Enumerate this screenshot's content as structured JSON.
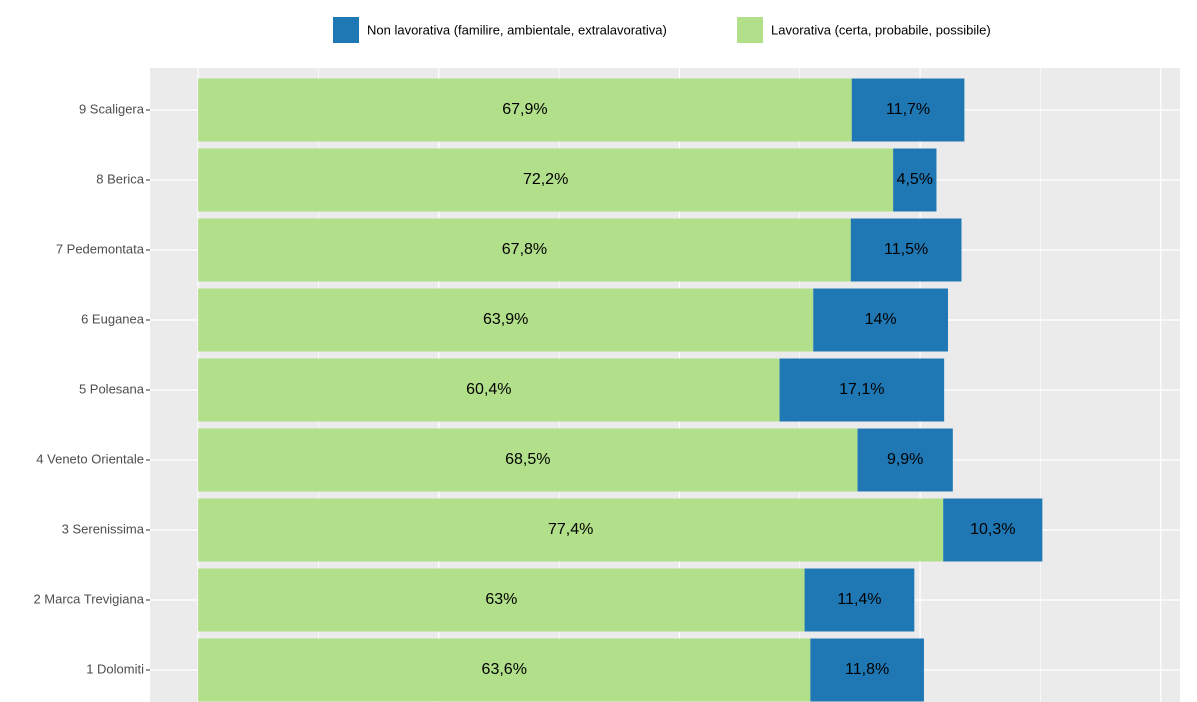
{
  "chart_data": {
    "type": "stacked-bar-horizontal",
    "categories": [
      "9 Scaligera",
      "8 Berica",
      "7 Pedemontata",
      "6 Euganea",
      "5 Polesana",
      "4 Veneto Orientale",
      "3 Serenissima",
      "2 Marca Trevigiana",
      "1 Dolomiti"
    ],
    "series": [
      {
        "name": "Non lavorativa (familire, ambientale, extralavorativa)",
        "color": "#1f78b4",
        "values": [
          11.7,
          4.5,
          11.5,
          14,
          17.1,
          9.9,
          10.3,
          11.4,
          11.8
        ],
        "value_labels": [
          "11,7%",
          "4,5%",
          "11,5%",
          "14%",
          "17,1%",
          "9,9%",
          "10,3%",
          "11,4%",
          "11,8%"
        ]
      },
      {
        "name": "Lavorativa (certa, probabile, possibile)",
        "color": "#b2df8a",
        "values": [
          67.9,
          72.2,
          67.8,
          63.9,
          60.4,
          68.5,
          77.4,
          63,
          63.6
        ],
        "value_labels": [
          "67,9%",
          "72,2%",
          "67,8%",
          "63,9%",
          "60,4%",
          "68,5%",
          "77,4%",
          "63%",
          "63,6%"
        ]
      }
    ],
    "xlim": [
      -5,
      102
    ],
    "xticks": [
      0,
      25,
      50,
      75,
      100
    ],
    "xticks_minor": [
      12.5,
      37.5,
      62.5,
      87.5
    ],
    "grid": true,
    "legend": "top"
  }
}
